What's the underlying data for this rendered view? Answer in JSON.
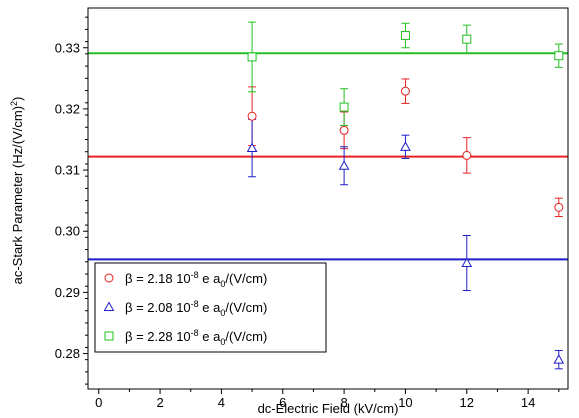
{
  "chart_data": {
    "type": "scatter",
    "xlabel": "dc-Electric Field (kV/cm)",
    "ylabel_parts": {
      "main": "ac-Stark Parameter (Hz/(V/cm)",
      "sup": "2",
      "end": ")"
    },
    "xlim": [
      -0.35,
      15.3
    ],
    "ylim": [
      0.2742,
      0.3365
    ],
    "x_ticks": [
      0,
      2,
      4,
      6,
      8,
      10,
      12,
      14
    ],
    "y_ticks": [
      0.28,
      0.29,
      0.3,
      0.31,
      0.32,
      0.33
    ],
    "y_tick_labels": [
      "0.28",
      "0.29",
      "0.30",
      "0.31",
      "0.32",
      "0.33"
    ],
    "grid": false,
    "legend_position": "bottom-left",
    "series": [
      {
        "marker": "circle",
        "color": "#e8201e",
        "fit_value": 0.3122,
        "legend": {
          "pre": "β = 2.18 10",
          "sup": "-8",
          "mid": " e a",
          "sub": "0",
          "post": "/(V/cm)"
        },
        "points": [
          {
            "x": 5,
            "y": 0.3188,
            "err": 0.0048
          },
          {
            "x": 8,
            "y": 0.3165,
            "err": 0.003
          },
          {
            "x": 10,
            "y": 0.3229,
            "err": 0.002
          },
          {
            "x": 12,
            "y": 0.3124,
            "err": 0.0029
          },
          {
            "x": 15,
            "y": 0.3039,
            "err": 0.0015
          }
        ]
      },
      {
        "marker": "triangle",
        "color": "#1e1ec8",
        "fit_value": 0.2954,
        "legend": {
          "pre": "β = 2.08 10",
          "sup": "-8",
          "mid": " e a",
          "sub": "0",
          "post": "/(V/cm)"
        },
        "points": [
          {
            "x": 5,
            "y": 0.3136,
            "err": 0.0047
          },
          {
            "x": 8,
            "y": 0.3107,
            "err": 0.0031
          },
          {
            "x": 10,
            "y": 0.3138,
            "err": 0.0019
          },
          {
            "x": 12,
            "y": 0.2948,
            "err": 0.0045
          },
          {
            "x": 15,
            "y": 0.279,
            "err": 0.0015
          }
        ]
      },
      {
        "marker": "square",
        "color": "#22c022",
        "fit_value": 0.3291,
        "legend": {
          "pre": "β = 2.28 10",
          "sup": "-8",
          "mid": " e a",
          "sub": "0",
          "post": "/(V/cm)"
        },
        "points": [
          {
            "x": 5,
            "y": 0.3285,
            "err": 0.0057
          },
          {
            "x": 8,
            "y": 0.3203,
            "err": 0.003
          },
          {
            "x": 10,
            "y": 0.332,
            "err": 0.002
          },
          {
            "x": 12,
            "y": 0.3314,
            "err": 0.0023
          },
          {
            "x": 15,
            "y": 0.3287,
            "err": 0.0019
          }
        ]
      }
    ]
  }
}
